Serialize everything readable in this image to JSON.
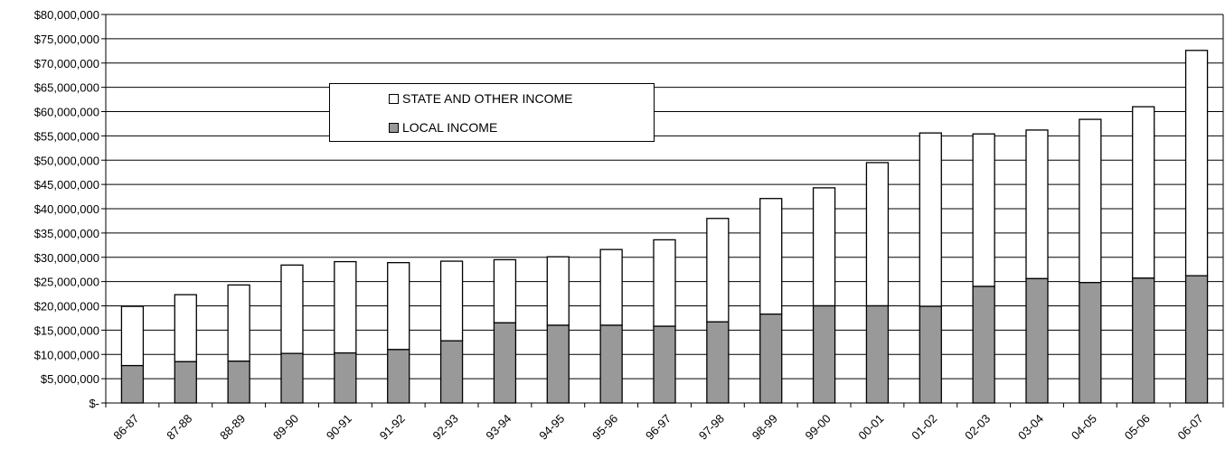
{
  "chart_data": {
    "type": "bar",
    "stacked": true,
    "categories": [
      "86-87",
      "87-88",
      "88-89",
      "89-90",
      "90-91",
      "91-92",
      "92-93",
      "93-94",
      "94-95",
      "95-96",
      "96-97",
      "97-98",
      "98-99",
      "99-00",
      "00-01",
      "01-02",
      "02-03",
      "03-04",
      "04-05",
      "05-06",
      "06-07"
    ],
    "series": [
      {
        "name": "LOCAL INCOME",
        "color": "#999999",
        "values": [
          7700000,
          8500000,
          8600000,
          10200000,
          10300000,
          11000000,
          12800000,
          16500000,
          16000000,
          16000000,
          15800000,
          16700000,
          18300000,
          20000000,
          20000000,
          19900000,
          24000000,
          25600000,
          24800000,
          25700000,
          26200000
        ]
      },
      {
        "name": "STATE AND OTHER INCOME",
        "color": "#ffffff",
        "values": [
          12200000,
          13800000,
          15700000,
          18200000,
          18800000,
          17900000,
          16400000,
          13000000,
          14100000,
          15600000,
          17800000,
          21300000,
          23800000,
          24300000,
          29500000,
          35700000,
          31400000,
          30600000,
          33600000,
          35300000,
          46400000
        ]
      }
    ],
    "yticks": [
      "$-",
      "$5,000,000",
      "$10,000,000",
      "$15,000,000",
      "$20,000,000",
      "$25,000,000",
      "$30,000,000",
      "$35,000,000",
      "$40,000,000",
      "$45,000,000",
      "$50,000,000",
      "$55,000,000",
      "$60,000,000",
      "$65,000,000",
      "$70,000,000",
      "$75,000,000",
      "$80,000,000"
    ],
    "ylim": [
      0,
      80000000
    ],
    "ystep": 5000000,
    "grid": true,
    "legend_position": "top-center",
    "title": "",
    "xlabel": "",
    "ylabel": ""
  },
  "legend": {
    "state_label": "STATE AND OTHER INCOME",
    "local_label": "LOCAL INCOME"
  }
}
